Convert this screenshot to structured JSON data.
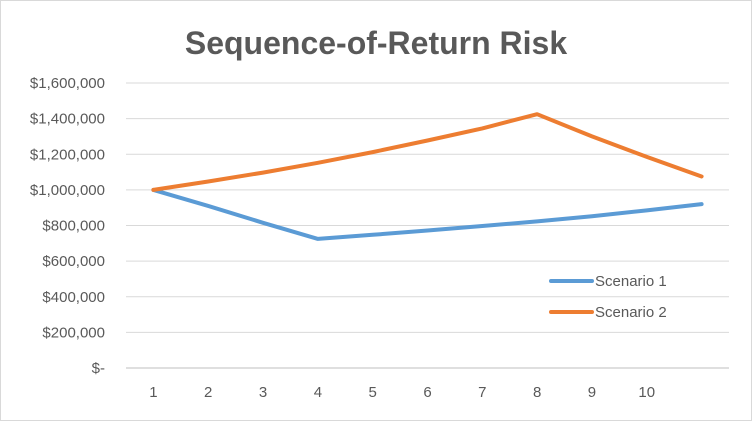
{
  "chart_data": {
    "type": "line",
    "title": "Sequence-of-Return Risk",
    "xlabel": "",
    "ylabel": "",
    "x": [
      1,
      2,
      3,
      4,
      5,
      6,
      7,
      8,
      9,
      10,
      11
    ],
    "x_tick_labels": [
      "1",
      "2",
      "3",
      "4",
      "5",
      "6",
      "7",
      "8",
      "9",
      "10"
    ],
    "y_tick_labels": [
      "$-",
      "$200,000",
      "$400,000",
      "$600,000",
      "$800,000",
      "$1,000,000",
      "$1,200,000",
      "$1,400,000",
      "$1,600,000"
    ],
    "ylim": [
      0,
      1600000
    ],
    "grid": "horizontal",
    "legend_position": "right",
    "series": [
      {
        "name": "Scenario 1",
        "color": "#5b9bd5",
        "values": [
          1000000,
          910000,
          815000,
          725000,
          748000,
          772000,
          797000,
          823000,
          852000,
          885000,
          920000
        ]
      },
      {
        "name": "Scenario 2",
        "color": "#ed7d31",
        "values": [
          1000000,
          1047000,
          1097000,
          1152000,
          1212000,
          1277000,
          1345000,
          1425000,
          1300000,
          1185000,
          1075000
        ]
      }
    ]
  }
}
